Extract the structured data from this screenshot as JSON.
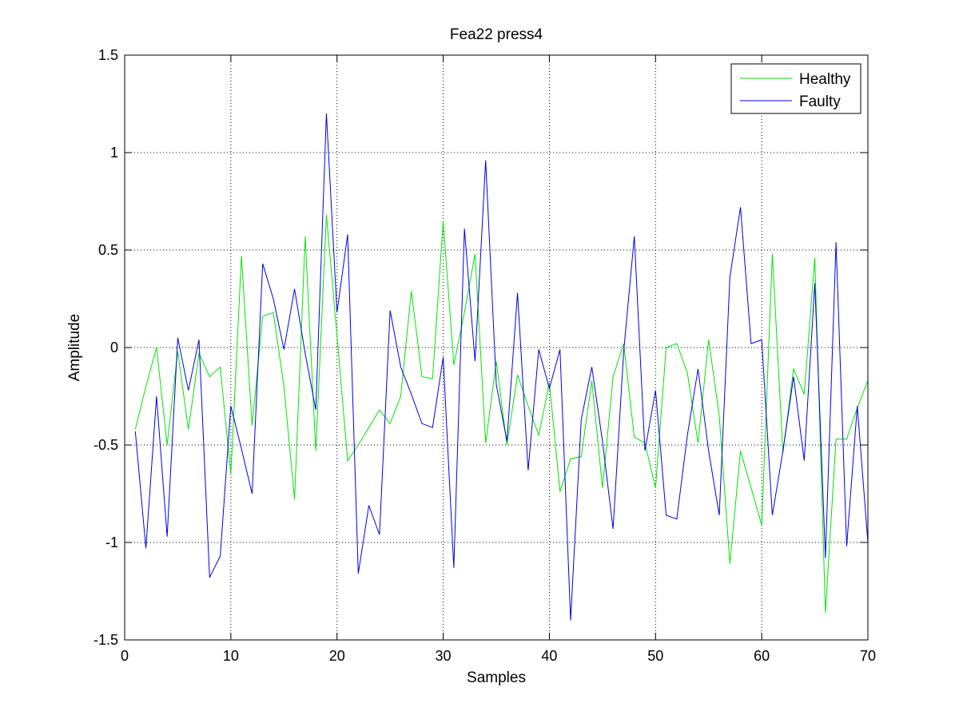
{
  "chart_data": {
    "type": "line",
    "title": "Fea22  press4",
    "xlabel": "Samples",
    "ylabel": "Amplitude",
    "xlim": [
      0,
      70
    ],
    "ylim": [
      -1.5,
      1.5
    ],
    "xticks": [
      0,
      10,
      20,
      30,
      40,
      50,
      60,
      70
    ],
    "yticks": [
      -1.5,
      -1,
      -0.5,
      0,
      0.5,
      1,
      1.5
    ],
    "xtick_labels": [
      "0",
      "10",
      "20",
      "30",
      "40",
      "50",
      "60",
      "70"
    ],
    "ytick_labels": [
      "-1.5",
      "-1",
      "-0.5",
      "0",
      "0.5",
      "1",
      "1.5"
    ],
    "grid": true,
    "legend_position": "top-right",
    "x": [
      1,
      2,
      3,
      4,
      5,
      6,
      7,
      8,
      9,
      10,
      11,
      12,
      13,
      14,
      15,
      16,
      17,
      18,
      19,
      20,
      21,
      22,
      23,
      24,
      25,
      26,
      27,
      28,
      29,
      30,
      31,
      32,
      33,
      34,
      35,
      36,
      37,
      38,
      39,
      40,
      41,
      42,
      43,
      44,
      45,
      46,
      47,
      48,
      49,
      50,
      51,
      52,
      53,
      54,
      55,
      56,
      57,
      58,
      59,
      60,
      61,
      62,
      63,
      64,
      65,
      66,
      67,
      68,
      69,
      70
    ],
    "series": [
      {
        "name": "Healthy",
        "color": "#00e600",
        "values": [
          -0.42,
          -0.2,
          0.0,
          -0.5,
          -0.02,
          -0.42,
          -0.03,
          -0.15,
          -0.1,
          -0.65,
          0.47,
          -0.4,
          0.16,
          0.18,
          -0.2,
          -0.78,
          0.57,
          -0.53,
          0.68,
          0.06,
          -0.58,
          -0.5,
          -0.41,
          -0.32,
          -0.39,
          -0.25,
          0.29,
          -0.15,
          -0.16,
          0.65,
          -0.09,
          0.18,
          0.48,
          -0.49,
          -0.07,
          -0.5,
          -0.14,
          -0.3,
          -0.45,
          -0.18,
          -0.74,
          -0.57,
          -0.56,
          -0.17,
          -0.72,
          -0.15,
          0.02,
          -0.46,
          -0.49,
          -0.72,
          0.0,
          0.02,
          -0.13,
          -0.49,
          0.04,
          -0.35,
          -1.11,
          -0.53,
          -0.72,
          -0.91,
          0.48,
          -0.54,
          -0.11,
          -0.24,
          0.46,
          -1.36,
          -0.47,
          -0.47,
          -0.31,
          -0.17
        ]
      },
      {
        "name": "Faulty",
        "color": "#0000e6",
        "values": [
          -0.43,
          -1.03,
          -0.25,
          -0.97,
          0.05,
          -0.22,
          0.04,
          -1.18,
          -1.07,
          -0.3,
          -0.52,
          -0.75,
          0.43,
          0.25,
          -0.01,
          0.3,
          -0.03,
          -0.32,
          1.2,
          0.18,
          0.58,
          -1.16,
          -0.81,
          -0.96,
          0.19,
          -0.1,
          -0.24,
          -0.39,
          -0.41,
          -0.05,
          -1.13,
          0.61,
          -0.07,
          0.96,
          -0.19,
          -0.48,
          0.28,
          -0.63,
          -0.01,
          -0.21,
          -0.01,
          -1.4,
          -0.37,
          -0.1,
          -0.48,
          -0.93,
          -0.02,
          0.57,
          -0.53,
          -0.22,
          -0.86,
          -0.88,
          -0.45,
          -0.11,
          -0.53,
          -0.86,
          0.36,
          0.72,
          0.02,
          0.04,
          -0.86,
          -0.53,
          -0.15,
          -0.58,
          0.33,
          -1.08,
          0.54,
          -1.02,
          -0.3,
          -1.0
        ]
      }
    ]
  }
}
